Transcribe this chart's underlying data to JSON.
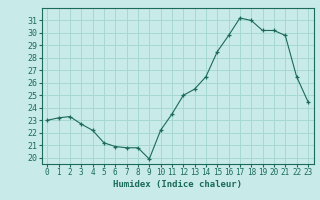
{
  "title": "",
  "xlabel": "Humidex (Indice chaleur)",
  "ylabel": "",
  "background_color": "#c8eae8",
  "grid_color": "#a8d8d4",
  "line_color": "#1a6b5a",
  "marker_color": "#1a6b5a",
  "xlim": [
    -0.5,
    23.5
  ],
  "ylim": [
    19.5,
    32.0
  ],
  "xticks": [
    0,
    1,
    2,
    3,
    4,
    5,
    6,
    7,
    8,
    9,
    10,
    11,
    12,
    13,
    14,
    15,
    16,
    17,
    18,
    19,
    20,
    21,
    22,
    23
  ],
  "yticks": [
    20,
    21,
    22,
    23,
    24,
    25,
    26,
    27,
    28,
    29,
    30,
    31
  ],
  "x": [
    0,
    1,
    2,
    3,
    4,
    5,
    6,
    7,
    8,
    9,
    10,
    11,
    12,
    13,
    14,
    15,
    16,
    17,
    18,
    19,
    20,
    21,
    22,
    23
  ],
  "y": [
    23.0,
    23.2,
    23.3,
    22.7,
    22.2,
    21.2,
    20.9,
    20.8,
    20.8,
    19.9,
    22.2,
    23.5,
    25.0,
    25.5,
    26.5,
    28.5,
    29.8,
    31.2,
    31.0,
    30.2,
    30.2,
    29.8,
    26.5,
    24.5
  ]
}
